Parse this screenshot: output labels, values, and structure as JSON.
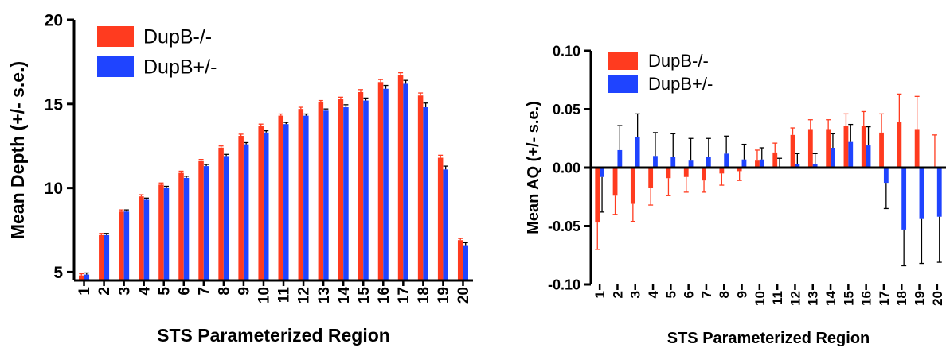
{
  "chart_data": [
    {
      "type": "bar",
      "xlabel": "STS Parameterized Region",
      "ylabel": "Mean Depth (+/- s.e.)",
      "ylim": [
        4.5,
        20
      ],
      "yticks": [
        5,
        10,
        15,
        20
      ],
      "categories": [
        "1",
        "2",
        "3",
        "4",
        "5",
        "6",
        "7",
        "8",
        "9",
        "10",
        "11",
        "12",
        "13",
        "14",
        "15",
        "16",
        "17",
        "18",
        "19",
        "20"
      ],
      "legend_position": "top-left",
      "grid": false,
      "series": [
        {
          "name": "DupB-/-",
          "color": "#FF3B1F",
          "values": [
            4.8,
            7.2,
            8.6,
            9.5,
            10.2,
            10.9,
            11.6,
            12.4,
            13.1,
            13.7,
            14.3,
            14.7,
            15.1,
            15.3,
            15.7,
            16.3,
            16.7,
            15.5,
            11.8,
            6.9
          ],
          "errors": [
            0.1,
            0.1,
            0.1,
            0.1,
            0.1,
            0.1,
            0.1,
            0.1,
            0.1,
            0.1,
            0.1,
            0.1,
            0.1,
            0.1,
            0.15,
            0.15,
            0.15,
            0.15,
            0.15,
            0.1
          ]
        },
        {
          "name": "DupB+/-",
          "color": "#1F44FF",
          "values": [
            4.85,
            7.2,
            8.6,
            9.3,
            10.0,
            10.6,
            11.3,
            11.9,
            12.6,
            13.3,
            13.8,
            14.3,
            14.6,
            14.8,
            15.2,
            15.9,
            16.2,
            14.8,
            11.1,
            6.6
          ],
          "errors": [
            0.1,
            0.1,
            0.1,
            0.1,
            0.1,
            0.1,
            0.1,
            0.1,
            0.1,
            0.1,
            0.1,
            0.1,
            0.1,
            0.15,
            0.15,
            0.2,
            0.2,
            0.25,
            0.2,
            0.15
          ]
        }
      ]
    },
    {
      "type": "bar",
      "xlabel": "STS Parameterized Region",
      "ylabel": "Mean AQ (+/- s.e.)",
      "ylim": [
        -0.1,
        0.1
      ],
      "yticks": [
        -0.1,
        -0.05,
        0.0,
        0.05,
        0.1
      ],
      "ytick_labels": [
        "-0.10",
        "-0.05",
        "0.00",
        "0.05",
        "0.10"
      ],
      "categories": [
        "1",
        "2",
        "3",
        "4",
        "5",
        "6",
        "7",
        "8",
        "9",
        "10",
        "11",
        "12",
        "13",
        "14",
        "15",
        "16",
        "17",
        "18",
        "19",
        "20"
      ],
      "legend_position": "top-center",
      "grid": false,
      "series": [
        {
          "name": "DupB-/-",
          "color": "#FF3B1F",
          "values": [
            -0.047,
            -0.024,
            -0.031,
            -0.017,
            -0.009,
            -0.008,
            -0.011,
            -0.005,
            -0.003,
            0.006,
            0.013,
            0.028,
            0.033,
            0.033,
            0.036,
            0.036,
            0.03,
            0.039,
            0.033,
            0.0
          ],
          "errors": [
            0.023,
            0.016,
            0.015,
            0.015,
            0.015,
            0.013,
            0.01,
            0.01,
            0.008,
            0.009,
            0.008,
            0.006,
            0.008,
            0.008,
            0.01,
            0.012,
            0.016,
            0.024,
            0.028,
            0.028
          ]
        },
        {
          "name": "DupB+/-",
          "color": "#1F44FF",
          "values": [
            -0.008,
            0.015,
            0.026,
            0.01,
            0.009,
            0.006,
            0.009,
            0.012,
            0.007,
            0.007,
            0.0,
            0.003,
            0.003,
            0.017,
            0.022,
            0.019,
            -0.013,
            -0.053,
            -0.044,
            -0.042
          ],
          "errors": [
            0.03,
            0.021,
            0.02,
            0.02,
            0.02,
            0.019,
            0.016,
            0.015,
            0.013,
            0.01,
            0.008,
            0.009,
            0.009,
            0.012,
            0.015,
            0.016,
            0.022,
            0.031,
            0.038,
            0.039
          ]
        }
      ]
    }
  ]
}
